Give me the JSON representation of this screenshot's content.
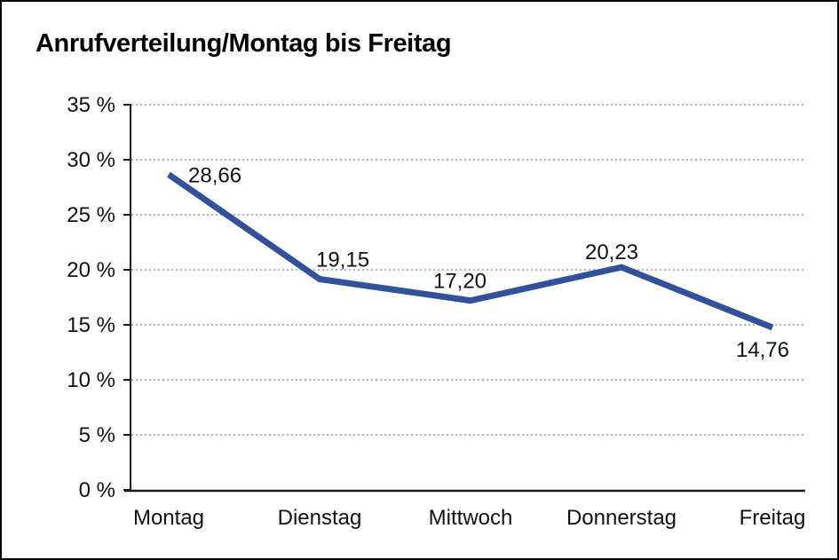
{
  "window": {
    "background_color": "#ffffff",
    "border_color": "#000000"
  },
  "chart_data": {
    "type": "line",
    "title": "Anrufverteilung/Montag bis Freitag",
    "categories": [
      "Montag",
      "Dienstag",
      "Mittwoch",
      "Donnerstag",
      "Freitag"
    ],
    "values": [
      28.66,
      19.15,
      17.2,
      20.23,
      14.76
    ],
    "value_labels": [
      "28,66",
      "19,15",
      "17,20",
      "20,23",
      "14,76"
    ],
    "series_name": "Anrufverteilung",
    "xlabel": "",
    "ylabel": "",
    "ylim": [
      0,
      35
    ],
    "y_tick_values": [
      35,
      30,
      25,
      20,
      15,
      10,
      5,
      0
    ],
    "y_tick_labels": [
      "35 %",
      "30 %",
      "25 %",
      "20 %",
      "15 %",
      "10 %",
      "5 %",
      "0 %"
    ],
    "grid": "horizontal-dotted",
    "legend": "none",
    "line_color": "#31519B",
    "grid_color": "#848484",
    "axis_color": "#1a1a1a",
    "label_color": "#111111"
  }
}
